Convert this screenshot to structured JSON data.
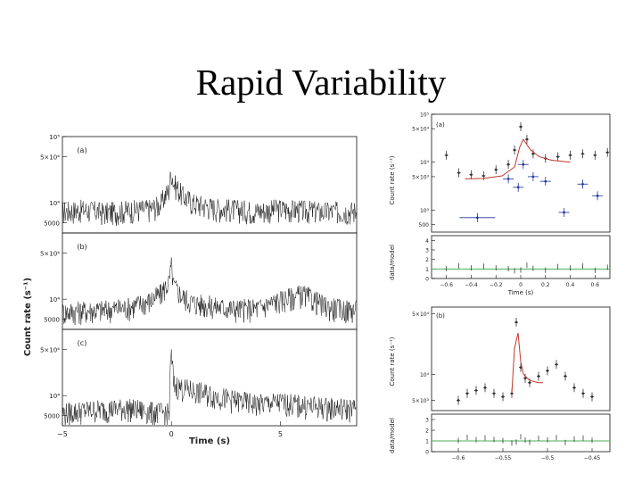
{
  "slide": {
    "title": "Rapid Variability"
  },
  "chart_data": [
    {
      "type": "line",
      "panels": [
        "(a)",
        "(b)",
        "(c)"
      ],
      "ylabel": "Count rate (s⁻¹)",
      "xlabel": "Time (s)",
      "y_scale": "log",
      "x_ticks": [
        "−5",
        "0",
        "5"
      ],
      "y_ticks": [
        "10⁵",
        "5×10⁴",
        "10⁴",
        "5000"
      ],
      "series": [
        {
          "x": [
            -5,
            -4,
            -3,
            -2,
            -1,
            -0.5,
            -0.1,
            0,
            0.1,
            0.5,
            1,
            2,
            3,
            4,
            5,
            6,
            7,
            8
          ],
          "y": [
            7500,
            8000,
            7200,
            7800,
            8200,
            9500,
            16000,
            30000,
            20000,
            13000,
            10000,
            8500,
            8000,
            7600,
            8200,
            7800,
            7400,
            7600
          ]
        },
        {
          "x": [
            -5,
            -4,
            -3,
            -2,
            -1,
            -0.5,
            -0.1,
            0,
            0.1,
            0.5,
            1,
            2,
            3,
            4,
            5,
            6,
            7,
            8
          ],
          "y": [
            6500,
            6800,
            7000,
            7600,
            9500,
            12000,
            18000,
            32000,
            16000,
            11000,
            9000,
            7800,
            7200,
            7400,
            9800,
            12000,
            8000,
            7000
          ]
        },
        {
          "x": [
            -5,
            -4,
            -3,
            -2,
            -1,
            -0.5,
            -0.1,
            0,
            0.1,
            0.5,
            1,
            2,
            3,
            4,
            5,
            6,
            7,
            8
          ],
          "y": [
            5500,
            6000,
            6300,
            6500,
            5800,
            5600,
            5400,
            40000,
            15000,
            13000,
            12000,
            10000,
            8500,
            7500,
            8000,
            7200,
            6800,
            6500
          ]
        }
      ]
    },
    {
      "type": "scatter",
      "panel": "(a)",
      "ylabel": "Count rate (s⁻¹)",
      "ylabel2": "data/model",
      "xlabel": "Time (s)",
      "x_ticks": [
        "−0.6",
        "−0.4",
        "−0.2",
        "0",
        "0.2",
        "0.4",
        "0.6"
      ],
      "y_ticks": [
        "10⁵",
        "5×10⁴",
        "10⁴",
        "5×10³",
        "10³",
        "500"
      ],
      "ratio_ticks": [
        "4",
        "3",
        "2",
        "1",
        "0"
      ],
      "series": [
        {
          "name": "",
          "color": "#333333",
          "x": [
            -0.6,
            -0.5,
            -0.4,
            -0.3,
            -0.2,
            -0.1,
            -0.05,
            0,
            0.05,
            0.1,
            0.2,
            0.3,
            0.4,
            0.5,
            0.6,
            0.7
          ],
          "y": [
            14000,
            6000,
            5500,
            5200,
            7000,
            9000,
            18000,
            55000,
            30000,
            15000,
            12000,
            13000,
            14000,
            15000,
            14000,
            16000
          ]
        },
        {
          "name": "",
          "color": "#1a2f9c",
          "x": [
            -0.35,
            -0.1,
            -0.02,
            0.02,
            0.1,
            0.2,
            0.35,
            0.5,
            0.62
          ],
          "y": [
            700,
            4500,
            3000,
            9000,
            5000,
            4000,
            900,
            3500,
            2000
          ]
        },
        {
          "name": "",
          "color": "#c0392b",
          "x": [
            -0.45,
            -0.3,
            -0.15,
            -0.05,
            -0.01,
            0.02,
            0.08,
            0.15,
            0.25,
            0.4
          ],
          "y": [
            4500,
            4600,
            5200,
            8000,
            20000,
            30000,
            18000,
            13000,
            11000,
            10000
          ]
        }
      ],
      "ratio": {
        "baseline": 1,
        "baseline_color": "#4caf50"
      }
    },
    {
      "type": "scatter",
      "panel": "(b)",
      "ylabel": "Count rate (s⁻¹)",
      "ylabel2": "data/model",
      "xlabel": "Time (s)",
      "x_ticks": [
        "−0.6",
        "−0.55",
        "−0.5",
        "−0.45"
      ],
      "y_ticks": [
        "5×10⁴",
        "10⁴",
        "5×10³"
      ],
      "ratio_ticks": [
        "3",
        "2",
        "1",
        "0"
      ],
      "series": [
        {
          "name": "",
          "color": "#333333",
          "x": [
            -0.6,
            -0.59,
            -0.58,
            -0.57,
            -0.56,
            -0.55,
            -0.54,
            -0.535,
            -0.53,
            -0.525,
            -0.52,
            -0.51,
            -0.5,
            -0.49,
            -0.48,
            -0.47,
            -0.46,
            -0.45
          ],
          "y": [
            5000,
            6000,
            6500,
            7000,
            6000,
            5500,
            6000,
            40000,
            12000,
            9000,
            8000,
            9500,
            11000,
            13000,
            9500,
            7000,
            6000,
            5500
          ]
        },
        {
          "name": "",
          "color": "#c0392b",
          "x": [
            -0.54,
            -0.537,
            -0.533,
            -0.53,
            -0.527,
            -0.52,
            -0.51,
            -0.505
          ],
          "y": [
            6000,
            20000,
            30000,
            14000,
            10000,
            8500,
            8000,
            8000
          ]
        }
      ],
      "ratio": {
        "baseline": 1,
        "baseline_color": "#4caf50"
      }
    }
  ]
}
